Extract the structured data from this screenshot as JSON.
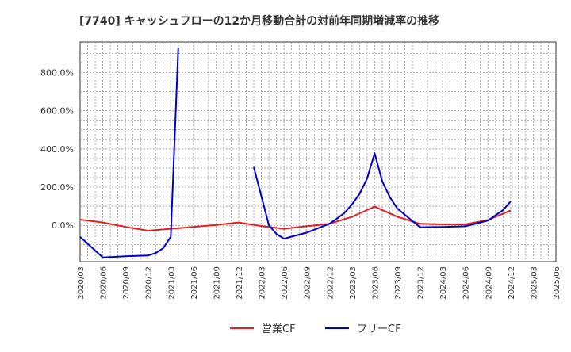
{
  "chart_data": {
    "type": "line",
    "title": "[7740]  キャッシュフローの12か月移動合計の対前年同期増減率の推移",
    "xlabel": "",
    "ylabel": "",
    "ylim": [
      -190,
      960
    ],
    "y_ticks": [
      0,
      200,
      400,
      600,
      800
    ],
    "y_tick_labels": [
      "0.0%",
      "200.0%",
      "400.0%",
      "600.0%",
      "800.0%"
    ],
    "x_tick_labels": [
      "2020/03",
      "2020/06",
      "2020/09",
      "2020/12",
      "2021/03",
      "2021/06",
      "2021/09",
      "2021/12",
      "2022/03",
      "2022/06",
      "2022/09",
      "2022/12",
      "2023/03",
      "2023/06",
      "2023/09",
      "2023/12",
      "2024/03",
      "2024/06",
      "2024/09",
      "2024/12",
      "2025/03",
      "2025/06"
    ],
    "grid": true,
    "legend": "bottom-center",
    "series": [
      {
        "name": "営業CF",
        "color": "#e02020",
        "points": [
          [
            "2020/03",
            30
          ],
          [
            "2020/06",
            15
          ],
          [
            "2020/09",
            -8
          ],
          [
            "2020/12",
            -28
          ],
          [
            "2021/03",
            -18
          ],
          [
            "2021/06",
            -8
          ],
          [
            "2021/09",
            2
          ],
          [
            "2021/12",
            15
          ],
          [
            "2022/03",
            -4
          ],
          [
            "2022/06",
            -18
          ],
          [
            "2022/09",
            -5
          ],
          [
            "2022/12",
            8
          ],
          [
            "2023/03",
            45
          ],
          [
            "2023/06",
            98
          ],
          [
            "2023/09",
            45
          ],
          [
            "2023/12",
            8
          ],
          [
            "2024/03",
            5
          ],
          [
            "2024/06",
            5
          ],
          [
            "2024/09",
            28
          ],
          [
            "2024/12",
            78
          ]
        ]
      },
      {
        "name": "フリーCF",
        "color": "#0000cc",
        "points": [
          [
            "2020/03",
            -60
          ],
          [
            "2020/06",
            -168
          ],
          [
            "2020/09",
            -162
          ],
          [
            "2020/12",
            -158
          ],
          [
            "2021/01",
            -145
          ],
          [
            "2021/02",
            -120
          ],
          [
            "2021/03",
            -60
          ],
          [
            "2021/04",
            930
          ],
          null,
          [
            "2022/02",
            305
          ],
          [
            "2022/04",
            0
          ],
          [
            "2022/05",
            -45
          ],
          [
            "2022/06",
            -70
          ],
          [
            "2022/09",
            -38
          ],
          [
            "2022/12",
            8
          ],
          [
            "2023/01",
            35
          ],
          [
            "2023/02",
            65
          ],
          [
            "2023/03",
            110
          ],
          [
            "2023/04",
            165
          ],
          [
            "2023/05",
            245
          ],
          [
            "2023/06",
            378
          ],
          [
            "2023/07",
            230
          ],
          [
            "2023/08",
            148
          ],
          [
            "2023/09",
            88
          ],
          [
            "2023/12",
            -10
          ],
          [
            "2024/03",
            -8
          ],
          [
            "2024/06",
            -5
          ],
          [
            "2024/09",
            25
          ],
          [
            "2024/11",
            80
          ],
          [
            "2024/12",
            125
          ]
        ]
      }
    ]
  }
}
